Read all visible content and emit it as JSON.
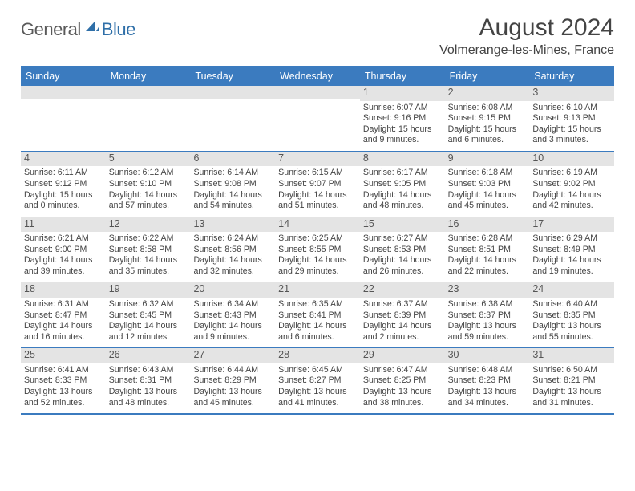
{
  "logo": {
    "general": "General",
    "blue": "Blue"
  },
  "title": "August 2024",
  "location": "Volmerange-les-Mines, France",
  "colors": {
    "header_bar": "#3b7bbf",
    "daynum_bg": "#e4e4e4",
    "text": "#444444",
    "logo_gray": "#5a5a5a",
    "logo_blue": "#2f6fa8",
    "background": "#ffffff"
  },
  "weekdays": [
    "Sunday",
    "Monday",
    "Tuesday",
    "Wednesday",
    "Thursday",
    "Friday",
    "Saturday"
  ],
  "weeks": [
    [
      {
        "n": "",
        "lines": []
      },
      {
        "n": "",
        "lines": []
      },
      {
        "n": "",
        "lines": []
      },
      {
        "n": "",
        "lines": []
      },
      {
        "n": "1",
        "lines": [
          "Sunrise: 6:07 AM",
          "Sunset: 9:16 PM",
          "Daylight: 15 hours",
          "and 9 minutes."
        ]
      },
      {
        "n": "2",
        "lines": [
          "Sunrise: 6:08 AM",
          "Sunset: 9:15 PM",
          "Daylight: 15 hours",
          "and 6 minutes."
        ]
      },
      {
        "n": "3",
        "lines": [
          "Sunrise: 6:10 AM",
          "Sunset: 9:13 PM",
          "Daylight: 15 hours",
          "and 3 minutes."
        ]
      }
    ],
    [
      {
        "n": "4",
        "lines": [
          "Sunrise: 6:11 AM",
          "Sunset: 9:12 PM",
          "Daylight: 15 hours",
          "and 0 minutes."
        ]
      },
      {
        "n": "5",
        "lines": [
          "Sunrise: 6:12 AM",
          "Sunset: 9:10 PM",
          "Daylight: 14 hours",
          "and 57 minutes."
        ]
      },
      {
        "n": "6",
        "lines": [
          "Sunrise: 6:14 AM",
          "Sunset: 9:08 PM",
          "Daylight: 14 hours",
          "and 54 minutes."
        ]
      },
      {
        "n": "7",
        "lines": [
          "Sunrise: 6:15 AM",
          "Sunset: 9:07 PM",
          "Daylight: 14 hours",
          "and 51 minutes."
        ]
      },
      {
        "n": "8",
        "lines": [
          "Sunrise: 6:17 AM",
          "Sunset: 9:05 PM",
          "Daylight: 14 hours",
          "and 48 minutes."
        ]
      },
      {
        "n": "9",
        "lines": [
          "Sunrise: 6:18 AM",
          "Sunset: 9:03 PM",
          "Daylight: 14 hours",
          "and 45 minutes."
        ]
      },
      {
        "n": "10",
        "lines": [
          "Sunrise: 6:19 AM",
          "Sunset: 9:02 PM",
          "Daylight: 14 hours",
          "and 42 minutes."
        ]
      }
    ],
    [
      {
        "n": "11",
        "lines": [
          "Sunrise: 6:21 AM",
          "Sunset: 9:00 PM",
          "Daylight: 14 hours",
          "and 39 minutes."
        ]
      },
      {
        "n": "12",
        "lines": [
          "Sunrise: 6:22 AM",
          "Sunset: 8:58 PM",
          "Daylight: 14 hours",
          "and 35 minutes."
        ]
      },
      {
        "n": "13",
        "lines": [
          "Sunrise: 6:24 AM",
          "Sunset: 8:56 PM",
          "Daylight: 14 hours",
          "and 32 minutes."
        ]
      },
      {
        "n": "14",
        "lines": [
          "Sunrise: 6:25 AM",
          "Sunset: 8:55 PM",
          "Daylight: 14 hours",
          "and 29 minutes."
        ]
      },
      {
        "n": "15",
        "lines": [
          "Sunrise: 6:27 AM",
          "Sunset: 8:53 PM",
          "Daylight: 14 hours",
          "and 26 minutes."
        ]
      },
      {
        "n": "16",
        "lines": [
          "Sunrise: 6:28 AM",
          "Sunset: 8:51 PM",
          "Daylight: 14 hours",
          "and 22 minutes."
        ]
      },
      {
        "n": "17",
        "lines": [
          "Sunrise: 6:29 AM",
          "Sunset: 8:49 PM",
          "Daylight: 14 hours",
          "and 19 minutes."
        ]
      }
    ],
    [
      {
        "n": "18",
        "lines": [
          "Sunrise: 6:31 AM",
          "Sunset: 8:47 PM",
          "Daylight: 14 hours",
          "and 16 minutes."
        ]
      },
      {
        "n": "19",
        "lines": [
          "Sunrise: 6:32 AM",
          "Sunset: 8:45 PM",
          "Daylight: 14 hours",
          "and 12 minutes."
        ]
      },
      {
        "n": "20",
        "lines": [
          "Sunrise: 6:34 AM",
          "Sunset: 8:43 PM",
          "Daylight: 14 hours",
          "and 9 minutes."
        ]
      },
      {
        "n": "21",
        "lines": [
          "Sunrise: 6:35 AM",
          "Sunset: 8:41 PM",
          "Daylight: 14 hours",
          "and 6 minutes."
        ]
      },
      {
        "n": "22",
        "lines": [
          "Sunrise: 6:37 AM",
          "Sunset: 8:39 PM",
          "Daylight: 14 hours",
          "and 2 minutes."
        ]
      },
      {
        "n": "23",
        "lines": [
          "Sunrise: 6:38 AM",
          "Sunset: 8:37 PM",
          "Daylight: 13 hours",
          "and 59 minutes."
        ]
      },
      {
        "n": "24",
        "lines": [
          "Sunrise: 6:40 AM",
          "Sunset: 8:35 PM",
          "Daylight: 13 hours",
          "and 55 minutes."
        ]
      }
    ],
    [
      {
        "n": "25",
        "lines": [
          "Sunrise: 6:41 AM",
          "Sunset: 8:33 PM",
          "Daylight: 13 hours",
          "and 52 minutes."
        ]
      },
      {
        "n": "26",
        "lines": [
          "Sunrise: 6:43 AM",
          "Sunset: 8:31 PM",
          "Daylight: 13 hours",
          "and 48 minutes."
        ]
      },
      {
        "n": "27",
        "lines": [
          "Sunrise: 6:44 AM",
          "Sunset: 8:29 PM",
          "Daylight: 13 hours",
          "and 45 minutes."
        ]
      },
      {
        "n": "28",
        "lines": [
          "Sunrise: 6:45 AM",
          "Sunset: 8:27 PM",
          "Daylight: 13 hours",
          "and 41 minutes."
        ]
      },
      {
        "n": "29",
        "lines": [
          "Sunrise: 6:47 AM",
          "Sunset: 8:25 PM",
          "Daylight: 13 hours",
          "and 38 minutes."
        ]
      },
      {
        "n": "30",
        "lines": [
          "Sunrise: 6:48 AM",
          "Sunset: 8:23 PM",
          "Daylight: 13 hours",
          "and 34 minutes."
        ]
      },
      {
        "n": "31",
        "lines": [
          "Sunrise: 6:50 AM",
          "Sunset: 8:21 PM",
          "Daylight: 13 hours",
          "and 31 minutes."
        ]
      }
    ]
  ]
}
